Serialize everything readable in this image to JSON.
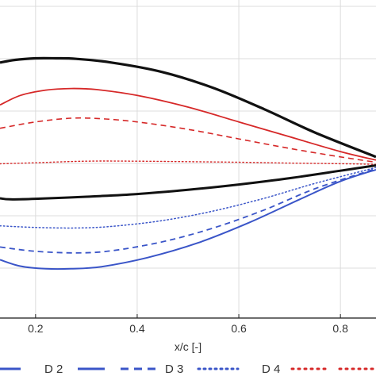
{
  "chart_data": {
    "type": "line",
    "xlabel": "x/c [-]",
    "ylabel": "",
    "xlim": [
      0.13,
      0.87
    ],
    "x_ticks": [
      "0.2",
      "0.4",
      "0.6",
      "0.8"
    ],
    "x_tick_values": [
      0.2,
      0.4,
      0.6,
      0.8
    ],
    "y_tick_count": 7,
    "grid": true,
    "legend_placement": "bottom",
    "legend": [
      {
        "label": "D 2",
        "color": "#3a55c8",
        "style": "solid"
      },
      {
        "label": "D 3",
        "color": "#3a55c8",
        "style": "dotted"
      },
      {
        "label": "D 4",
        "color": "#d62828",
        "style": "dotted"
      }
    ],
    "series": [
      {
        "color": "#111111",
        "style": "solid",
        "width": 3.2,
        "x": [
          0.13,
          0.16,
          0.2,
          0.24,
          0.28,
          0.35,
          0.45,
          0.55,
          0.65,
          0.75,
          0.87
        ],
        "y": [
          0.96,
          0.985,
          1.0,
          1.0,
          0.995,
          0.96,
          0.87,
          0.72,
          0.52,
          0.3,
          0.07
        ]
      },
      {
        "color": "#d62828",
        "style": "solid",
        "width": 1.8,
        "x": [
          0.13,
          0.17,
          0.22,
          0.27,
          0.32,
          0.4,
          0.5,
          0.6,
          0.7,
          0.8,
          0.87
        ],
        "y": [
          0.56,
          0.65,
          0.7,
          0.715,
          0.705,
          0.65,
          0.54,
          0.4,
          0.26,
          0.12,
          0.04
        ]
      },
      {
        "color": "#d62828",
        "style": "dashed",
        "width": 1.6,
        "x": [
          0.13,
          0.2,
          0.27,
          0.33,
          0.4,
          0.5,
          0.6,
          0.7,
          0.8,
          0.87
        ],
        "y": [
          0.34,
          0.4,
          0.435,
          0.43,
          0.4,
          0.33,
          0.24,
          0.15,
          0.07,
          0.02
        ]
      },
      {
        "color": "#d62828",
        "style": "dotted",
        "width": 1.4,
        "x": [
          0.13,
          0.2,
          0.3,
          0.4,
          0.5,
          0.6,
          0.7,
          0.8,
          0.87
        ],
        "y": [
          0.005,
          0.015,
          0.03,
          0.03,
          0.025,
          0.02,
          0.012,
          0.006,
          0.0
        ]
      },
      {
        "color": "#111111",
        "style": "solid",
        "width": 3.0,
        "x": [
          0.13,
          0.15,
          0.2,
          0.3,
          0.4,
          0.5,
          0.6,
          0.7,
          0.8,
          0.87
        ],
        "y": [
          -0.32,
          -0.33,
          -0.325,
          -0.305,
          -0.28,
          -0.24,
          -0.19,
          -0.13,
          -0.06,
          -0.01
        ]
      },
      {
        "color": "#3a55c8",
        "style": "dotted",
        "width": 1.5,
        "x": [
          0.13,
          0.2,
          0.28,
          0.35,
          0.45,
          0.55,
          0.65,
          0.75,
          0.87
        ],
        "y": [
          -0.58,
          -0.595,
          -0.6,
          -0.585,
          -0.53,
          -0.44,
          -0.32,
          -0.18,
          -0.03
        ]
      },
      {
        "color": "#3a55c8",
        "style": "dashed",
        "width": 1.8,
        "x": [
          0.13,
          0.2,
          0.28,
          0.35,
          0.45,
          0.55,
          0.65,
          0.75,
          0.87
        ],
        "y": [
          -0.78,
          -0.82,
          -0.835,
          -0.815,
          -0.73,
          -0.6,
          -0.43,
          -0.23,
          -0.04
        ]
      },
      {
        "color": "#3a55c8",
        "style": "solid",
        "width": 2.0,
        "x": [
          0.13,
          0.17,
          0.22,
          0.27,
          0.33,
          0.42,
          0.52,
          0.62,
          0.72,
          0.8,
          0.87
        ],
        "y": [
          -0.9,
          -0.96,
          -0.985,
          -0.985,
          -0.965,
          -0.88,
          -0.74,
          -0.55,
          -0.33,
          -0.16,
          -0.05
        ]
      }
    ]
  }
}
